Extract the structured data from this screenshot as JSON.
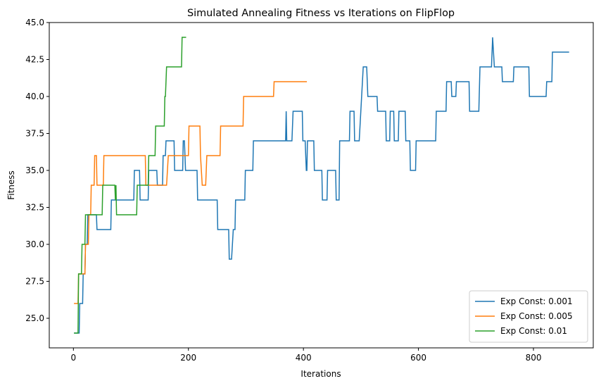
{
  "chart_data": {
    "type": "line",
    "title": "Simulated Annealing Fitness vs Iterations on FlipFlop",
    "xlabel": "Iterations",
    "ylabel": "Fitness",
    "xlim": [
      -42,
      904
    ],
    "ylim": [
      23,
      45
    ],
    "xticks": [
      0,
      200,
      400,
      600,
      800
    ],
    "yticks": [
      {
        "value": 25,
        "label": "25.0"
      },
      27.5,
      {
        "value": 30,
        "label": "30.0"
      },
      32.5,
      {
        "value": 35,
        "label": "35.0"
      },
      37.5,
      {
        "value": 40,
        "label": "40.0"
      },
      42.5,
      {
        "value": 45,
        "label": "45.0"
      }
    ],
    "legend": "lower right",
    "series": [
      {
        "name": "Exp Const: 0.001",
        "color": "#1f77b4",
        "x": [
          1,
          10,
          11,
          16,
          17,
          20,
          21,
          24,
          25,
          40,
          41,
          65,
          66,
          105,
          106,
          115,
          116,
          130,
          131,
          145,
          146,
          155,
          156,
          160,
          161,
          175,
          176,
          190,
          191,
          193,
          195,
          215,
          216,
          250,
          251,
          270,
          271,
          275,
          278,
          281,
          282,
          298,
          299,
          312,
          313,
          369,
          370,
          371,
          372,
          380,
          382,
          398,
          399,
          403,
          405,
          406,
          407,
          418,
          419,
          432,
          433,
          441,
          442,
          456,
          457,
          462,
          463,
          465,
          480,
          481,
          488,
          489,
          497,
          504,
          510,
          512,
          528,
          529,
          543,
          544,
          550,
          551,
          557,
          558,
          565,
          566,
          577,
          578,
          585,
          586,
          595,
          596,
          630,
          631,
          648,
          649,
          657,
          658,
          665,
          666,
          688,
          689,
          705,
          707,
          727,
          729,
          732,
          745,
          746,
          765,
          766,
          792,
          793,
          822,
          823,
          832,
          833,
          862
        ],
        "values": [
          24,
          24,
          26,
          26,
          28,
          28,
          30,
          30,
          32,
          32,
          31,
          31,
          33,
          33,
          35,
          35,
          33,
          33,
          35,
          35,
          34,
          34,
          36,
          36,
          37,
          37,
          35,
          35,
          37,
          37,
          35,
          35,
          33,
          33,
          31,
          31,
          29,
          29,
          31,
          31,
          33,
          33,
          35,
          35,
          37,
          37,
          39,
          37,
          37,
          37,
          39,
          39,
          37,
          37,
          35,
          35,
          37,
          37,
          35,
          35,
          33,
          33,
          35,
          35,
          33,
          33,
          37,
          37,
          37,
          39,
          39,
          37,
          37,
          42,
          42,
          40,
          40,
          39,
          39,
          37,
          37,
          39,
          39,
          37,
          37,
          39,
          39,
          37,
          37,
          35,
          35,
          37,
          37,
          39,
          39,
          41,
          41,
          40,
          40,
          41,
          41,
          39,
          39,
          42,
          42,
          44,
          42,
          42,
          41,
          41,
          42,
          42,
          40,
          40,
          41,
          41,
          43,
          43
        ]
      },
      {
        "name": "Exp Const: 0.005",
        "color": "#ff7f0e",
        "x": [
          1,
          8,
          9,
          20,
          21,
          26,
          27,
          30,
          31,
          36,
          37,
          40,
          41,
          52,
          53,
          125,
          126,
          162,
          165,
          200,
          201,
          220,
          221,
          224,
          230,
          232,
          255,
          256,
          295,
          296,
          348,
          349,
          406
        ],
        "values": [
          26,
          26,
          28,
          28,
          30,
          30,
          32,
          32,
          34,
          34,
          36,
          36,
          34,
          34,
          36,
          36,
          34,
          34,
          36,
          36,
          38,
          38,
          36,
          34,
          34,
          36,
          36,
          38,
          38,
          40,
          40,
          41,
          41
        ]
      },
      {
        "name": "Exp Const: 0.01",
        "color": "#2ca02c",
        "x": [
          1,
          8,
          9,
          14,
          15,
          20,
          21,
          50,
          51,
          72,
          73,
          74,
          75,
          110,
          111,
          130,
          131,
          142,
          143,
          158,
          159,
          160,
          162,
          188,
          189,
          196
        ],
        "values": [
          24,
          24,
          28,
          28,
          30,
          30,
          32,
          32,
          34,
          34,
          33,
          34,
          32,
          32,
          34,
          34,
          36,
          36,
          38,
          38,
          40,
          40,
          42,
          42,
          44,
          44
        ]
      }
    ]
  }
}
